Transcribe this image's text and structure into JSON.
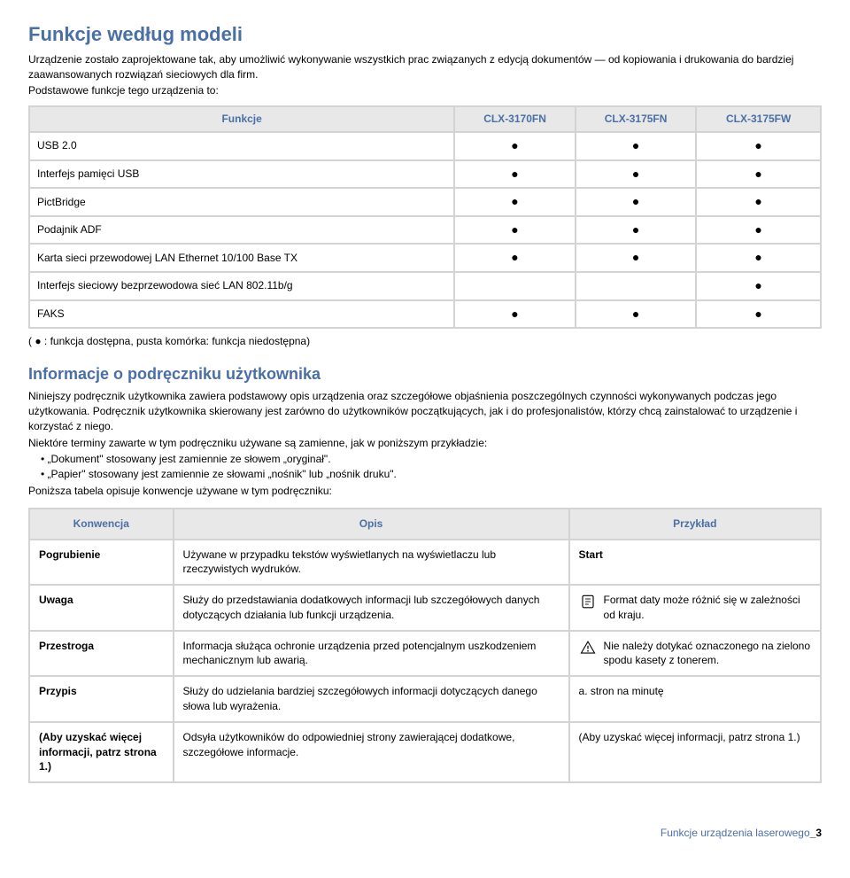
{
  "section1": {
    "title": "Funkcje według modeli",
    "intro1": "Urządzenie zostało zaprojektowane tak, aby umożliwić wykonywanie wszystkich prac związanych z edycją dokumentów — od kopiowania i drukowania do bardziej zaawansowanych rozwiązań sieciowych dla firm.",
    "intro2": "Podstawowe funkcje tego urządzenia to:",
    "table": {
      "headers": [
        "Funkcje",
        "CLX-3170FN",
        "CLX-3175FN",
        "CLX-3175FW"
      ],
      "rows": [
        {
          "label": "USB 2.0",
          "cells": [
            "●",
            "●",
            "●"
          ]
        },
        {
          "label": "Interfejs pamięci USB",
          "cells": [
            "●",
            "●",
            "●"
          ]
        },
        {
          "label": "PictBridge",
          "cells": [
            "●",
            "●",
            "●"
          ]
        },
        {
          "label": "Podajnik ADF",
          "cells": [
            "●",
            "●",
            "●"
          ]
        },
        {
          "label": "Karta sieci przewodowej LAN Ethernet 10/100 Base TX",
          "cells": [
            "●",
            "●",
            "●"
          ]
        },
        {
          "label": "Interfejs sieciowy bezprzewodowa sieć LAN 802.11b/g",
          "cells": [
            "",
            "",
            "●"
          ]
        },
        {
          "label": "FAKS",
          "cells": [
            "●",
            "●",
            "●"
          ]
        }
      ]
    },
    "legend": "( ● : funkcja dostępna, pusta komórka: funkcja niedostępna)"
  },
  "section2": {
    "title": "Informacje o podręczniku użytkownika",
    "para1": "Niniejszy podręcznik użytkownika zawiera podstawowy opis urządzenia oraz szczegółowe objaśnienia poszczególnych czynności wykonywanych podczas jego użytkowania. Podręcznik użytkownika skierowany jest zarówno do użytkowników początkujących, jak i do profesjonalistów, którzy chcą zainstalować to urządzenie i korzystać z niego.",
    "para2": "Niektóre terminy zawarte w tym podręczniku używane są zamienne, jak w poniższym przykładzie:",
    "bullets": [
      "„Dokument\" stosowany jest zamiennie ze słowem „oryginał\".",
      "„Papier\" stosowany jest zamiennie ze słowami „nośnik\" lub „nośnik druku\"."
    ],
    "para3": "Poniższa tabela opisuje konwencje używane w tym podręczniku:",
    "table": {
      "headers": [
        "Konwencja",
        "Opis",
        "Przykład"
      ],
      "rows": [
        {
          "name": "Pogrubienie",
          "desc": "Używane w przypadku tekstów wyświetlanych na wyświetlaczu lub rzeczywistych wydruków.",
          "example": "Start",
          "icon": null,
          "example_bold": true
        },
        {
          "name": "Uwaga",
          "desc": "Służy do przedstawiania dodatkowych informacji lub szczegółowych danych dotyczących działania lub funkcji urządzenia.",
          "example": "Format daty może różnić się w zależności od kraju.",
          "icon": "note",
          "example_bold": false
        },
        {
          "name": "Przestroga",
          "desc": "Informacja służąca ochronie urządzenia przed potencjalnym uszkodzeniem mechanicznym lub awarią.",
          "example": "Nie należy dotykać oznaczonego na zielono spodu kasety z tonerem.",
          "icon": "warn",
          "example_bold": false
        },
        {
          "name": "Przypis",
          "desc": "Służy do udzielania bardziej szczegółowych informacji dotyczących danego słowa lub wyrażenia.",
          "example": "a. stron na minutę",
          "icon": null,
          "example_bold": false
        },
        {
          "name": "(Aby uzyskać więcej informacji, patrz strona 1.)",
          "desc": "Odsyła użytkowników do odpowiedniej strony zawierającej dodatkowe, szczegółowe informacje.",
          "example": "(Aby uzyskać więcej informacji, patrz strona 1.)",
          "icon": null,
          "example_bold": false
        }
      ]
    }
  },
  "footer": {
    "label": "Funkcje urządzenia laserowego",
    "page": "_3"
  },
  "colors": {
    "heading": "#4a6fa5",
    "border": "#d3d3d3",
    "header_bg": "#e8e8e8",
    "text": "#000000",
    "background": "#ffffff"
  }
}
